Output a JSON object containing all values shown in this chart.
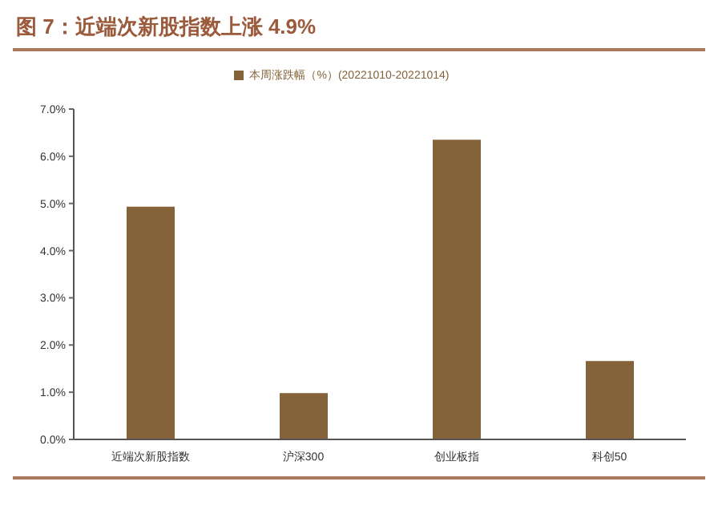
{
  "chart_data": {
    "type": "bar",
    "title": "图 7：近端次新股指数上涨 4.9%",
    "categories": [
      "近端次新股指数",
      "沪深300",
      "创业板指",
      "科创50"
    ],
    "series": [
      {
        "name": "本周涨跌幅（%）(20221010-20221014)",
        "color": "#84633a",
        "values": [
          4.93,
          0.98,
          6.35,
          1.66
        ]
      }
    ],
    "ylim": [
      0,
      7
    ],
    "yticks": [
      {
        "value": 0,
        "label": "0.0%"
      },
      {
        "value": 1,
        "label": "1.0%"
      },
      {
        "value": 2,
        "label": "2.0%"
      },
      {
        "value": 3,
        "label": "3.0%"
      },
      {
        "value": 4,
        "label": "4.0%"
      },
      {
        "value": 5,
        "label": "5.0%"
      },
      {
        "value": 6,
        "label": "6.0%"
      },
      {
        "value": 7,
        "label": "7.0%"
      }
    ],
    "grid": false,
    "legend": "top"
  }
}
